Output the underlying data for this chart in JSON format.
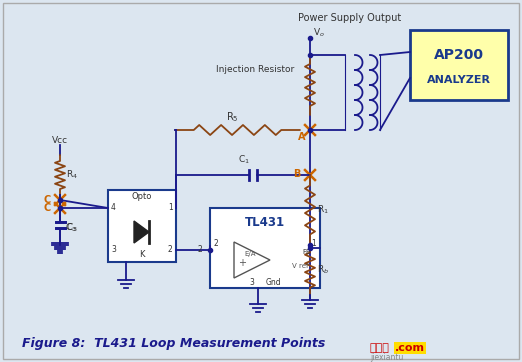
{
  "bg_color": "#dce6f0",
  "title_text": "Figure 8:  TL431 Loop Measurement Points",
  "title_color": "#1a1a8c",
  "header_text": "Power Supply Output",
  "header_color": "#333333",
  "inj_res_text": "Injection Resistor",
  "wire_color": "#1a1a8c",
  "comp_color": "#1a1a8c",
  "resistor_color": "#8B4513",
  "opto_box_color": "#1a3a8c",
  "tl431_box_color": "#1a3a8c",
  "ap200_box_color": "#ffffaa",
  "ap200_border_color": "#1a3a8c",
  "ap200_text_color": "#1a3a8c",
  "label_color": "#333333",
  "point_color": "#cc6600",
  "watermark_cn": "接线图",
  "watermark_dot_com": ".com",
  "watermark_sub": "jiexiantu"
}
